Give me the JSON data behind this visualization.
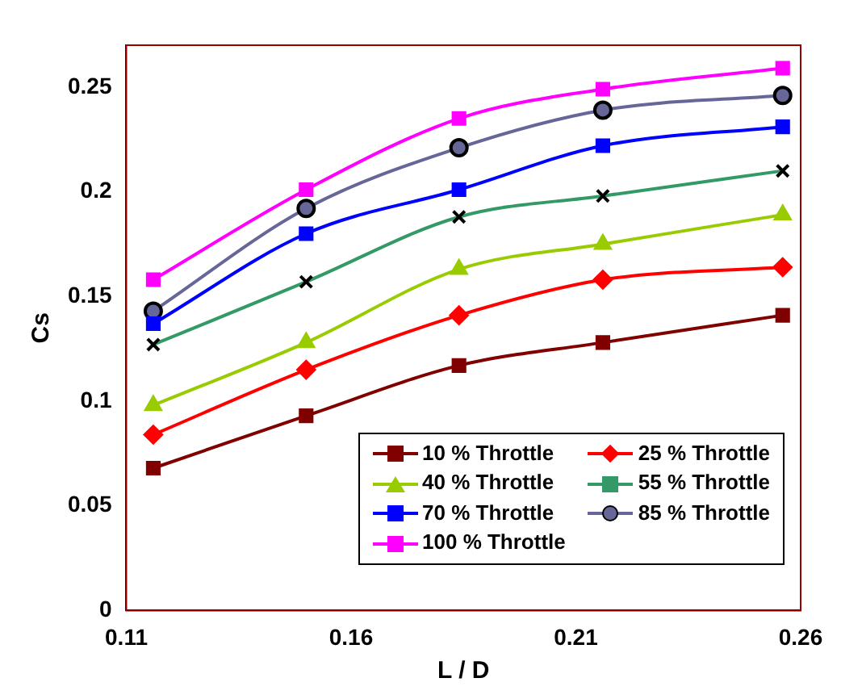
{
  "chart_data": {
    "type": "line",
    "xlabel": "L / D",
    "ylabel": "Cs",
    "x": [
      0.116,
      0.15,
      0.184,
      0.216,
      0.256
    ],
    "xlim": [
      0.11,
      0.26
    ],
    "xticks": [
      0.11,
      0.16,
      0.21,
      0.26
    ],
    "ylim": [
      0,
      0.27
    ],
    "yticks": [
      0,
      0.05,
      0.1,
      0.15,
      0.2,
      0.25
    ],
    "grid": false,
    "legend": "bottom right",
    "line_style": "solid",
    "series": [
      {
        "name": "10 % Throttle",
        "color": "#800000",
        "marker": "square",
        "values": [
          0.068,
          0.093,
          0.117,
          0.128,
          0.141
        ]
      },
      {
        "name": "25 % Throttle",
        "color": "#ff0000",
        "marker": "diamond",
        "values": [
          0.084,
          0.115,
          0.141,
          0.158,
          0.164
        ]
      },
      {
        "name": "40 % Throttle",
        "color": "#99cc00",
        "marker": "triangle",
        "values": [
          0.098,
          0.128,
          0.163,
          0.175,
          0.189
        ]
      },
      {
        "name": "55 % Throttle",
        "color": "#339966",
        "marker": "cross",
        "values": [
          0.127,
          0.157,
          0.188,
          0.198,
          0.21
        ]
      },
      {
        "name": "70 % Throttle",
        "color": "#0000ff",
        "marker": "square",
        "values": [
          0.137,
          0.18,
          0.201,
          0.222,
          0.231
        ]
      },
      {
        "name": "85 % Throttle",
        "color": "#666699",
        "marker": "circle",
        "values": [
          0.143,
          0.192,
          0.221,
          0.239,
          0.246
        ]
      },
      {
        "name": "100 % Throttle",
        "color": "#ff00ff",
        "marker": "square",
        "values": [
          0.158,
          0.201,
          0.235,
          0.249,
          0.259
        ]
      }
    ]
  }
}
